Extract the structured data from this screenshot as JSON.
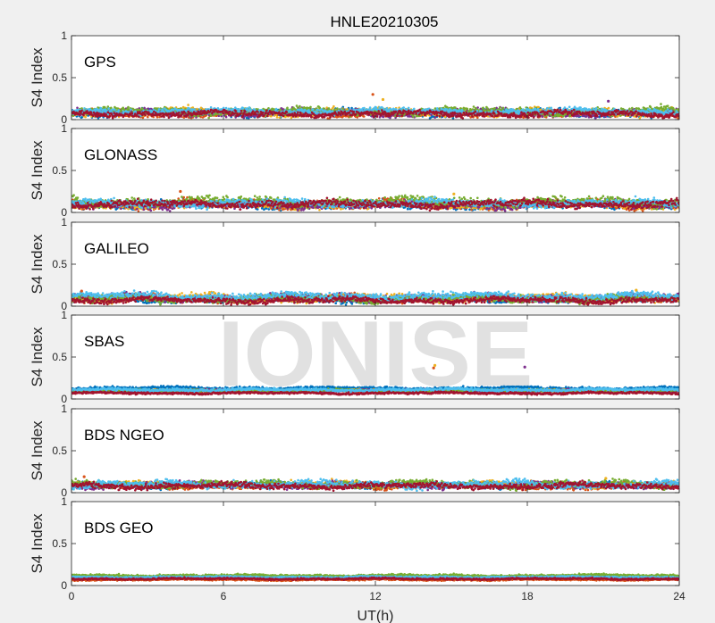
{
  "figure": {
    "title": "HNLE20210305",
    "watermark": "IONISE",
    "xlabel": "UT(h)"
  },
  "colors": {
    "background": "#f0f0f0",
    "axes_bg": "#ffffff",
    "axes_line": "#262626",
    "watermark_fill": "#dcdcdc",
    "series": [
      "#0072BD",
      "#D95319",
      "#EDB120",
      "#7E2F8E",
      "#77AC30",
      "#4DBEEE",
      "#A2142F"
    ]
  },
  "chart_data": [
    {
      "type": "scatter",
      "panel_label": "GPS",
      "ylabel": "S4 Index",
      "xlim": [
        0,
        24
      ],
      "ylim": [
        0,
        1
      ],
      "x_ticks": [
        0,
        6,
        12,
        18,
        24
      ],
      "y_ticks": [
        0,
        0.5,
        1
      ],
      "y_tick_labels": [
        "0",
        "0.5",
        "1"
      ],
      "x_tick_labels": [],
      "grid": false,
      "series_base": [
        0.08,
        0.07,
        0.09,
        0.08,
        0.1,
        0.1,
        0.07
      ],
      "series_spread": [
        0.05,
        0.04,
        0.05,
        0.05,
        0.05,
        0.04,
        0.04
      ],
      "outliers": [
        {
          "x": 11.9,
          "y": 0.3
        },
        {
          "x": 12.3,
          "y": 0.24
        },
        {
          "x": 21.2,
          "y": 0.22
        }
      ]
    },
    {
      "type": "scatter",
      "panel_label": "GLONASS",
      "ylabel": "S4 Index",
      "xlim": [
        0,
        24
      ],
      "ylim": [
        0,
        1
      ],
      "x_ticks": [
        0,
        6,
        12,
        18,
        24
      ],
      "y_ticks": [
        0,
        0.5,
        1
      ],
      "y_tick_labels": [
        "0",
        "0.5",
        "1"
      ],
      "x_tick_labels": [],
      "grid": false,
      "series_base": [
        0.09,
        0.1,
        0.08,
        0.09,
        0.13,
        0.11,
        0.1
      ],
      "series_spread": [
        0.05,
        0.06,
        0.04,
        0.05,
        0.06,
        0.05,
        0.05
      ],
      "outliers": [
        {
          "x": 4.3,
          "y": 0.25
        },
        {
          "x": 15.1,
          "y": 0.22
        }
      ]
    },
    {
      "type": "scatter",
      "panel_label": "GALILEO",
      "ylabel": "S4 Index",
      "xlim": [
        0,
        24
      ],
      "ylim": [
        0,
        1
      ],
      "x_ticks": [
        0,
        6,
        12,
        18,
        24
      ],
      "y_ticks": [
        0,
        0.5,
        1
      ],
      "y_tick_labels": [
        "0",
        "0.5",
        "1"
      ],
      "x_tick_labels": [],
      "grid": false,
      "series_base": [
        0.08,
        0.09,
        0.1,
        0.1,
        0.09,
        0.12,
        0.07
      ],
      "series_spread": [
        0.04,
        0.05,
        0.05,
        0.05,
        0.05,
        0.05,
        0.04
      ],
      "outliers": [
        {
          "x": 0.4,
          "y": 0.18
        },
        {
          "x": 22.3,
          "y": 0.19
        }
      ]
    },
    {
      "type": "scatter",
      "panel_label": "SBAS",
      "ylabel": "S4 Index",
      "xlim": [
        0,
        24
      ],
      "ylim": [
        0,
        1
      ],
      "x_ticks": [
        0,
        6,
        12,
        18,
        24
      ],
      "y_ticks": [
        0,
        0.5,
        1
      ],
      "y_tick_labels": [
        "0",
        "0.5",
        "1"
      ],
      "x_tick_labels": [],
      "grid": false,
      "series_base": [
        0.13,
        0.09,
        0.1,
        0.1,
        0.1,
        0.11,
        0.07
      ],
      "series_spread": [
        0.02,
        0.015,
        0.015,
        0.015,
        0.015,
        0.02,
        0.015
      ],
      "outliers": [
        {
          "x": 14.3,
          "y": 0.37
        },
        {
          "x": 14.35,
          "y": 0.4
        },
        {
          "x": 17.9,
          "y": 0.38
        }
      ]
    },
    {
      "type": "scatter",
      "panel_label": "BDS NGEO",
      "ylabel": "S4 Index",
      "xlim": [
        0,
        24
      ],
      "ylim": [
        0,
        1
      ],
      "x_ticks": [
        0,
        6,
        12,
        18,
        24
      ],
      "y_ticks": [
        0,
        0.5,
        1
      ],
      "y_tick_labels": [
        "0",
        "0.5",
        "1"
      ],
      "x_tick_labels": [],
      "grid": false,
      "series_base": [
        0.09,
        0.08,
        0.1,
        0.09,
        0.1,
        0.1,
        0.08
      ],
      "series_spread": [
        0.04,
        0.04,
        0.04,
        0.04,
        0.05,
        0.05,
        0.04
      ],
      "outliers": [
        {
          "x": 0.5,
          "y": 0.19
        },
        {
          "x": 21.1,
          "y": 0.17
        }
      ]
    },
    {
      "type": "scatter",
      "panel_label": "BDS GEO",
      "ylabel": "S4 Index",
      "xlim": [
        0,
        24
      ],
      "ylim": [
        0,
        1
      ],
      "x_ticks": [
        0,
        6,
        12,
        18,
        24
      ],
      "y_ticks": [
        0,
        0.5,
        1
      ],
      "y_tick_labels": [
        "0",
        "0.5",
        "1"
      ],
      "x_tick_labels": [
        "0",
        "6",
        "12",
        "18",
        "24"
      ],
      "grid": false,
      "series_base": [
        0.1,
        0.07,
        0.09,
        0.09,
        0.12,
        0.1,
        0.08
      ],
      "series_spread": [
        0.015,
        0.012,
        0.012,
        0.012,
        0.015,
        0.012,
        0.012
      ],
      "outliers": []
    }
  ]
}
